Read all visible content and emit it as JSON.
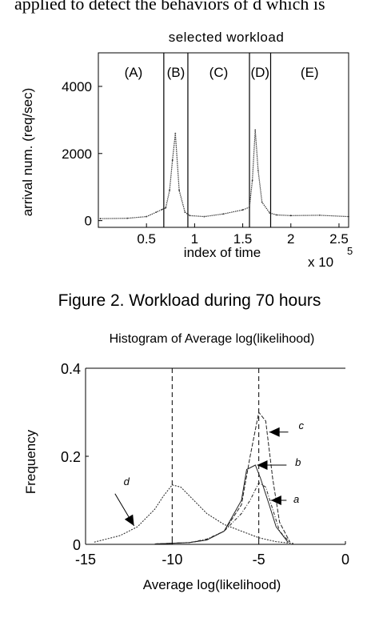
{
  "body_text_top": "applied to detect the behaviors of d which is",
  "figure_caption": "Figure 2. Workload during 70 hours",
  "chart_data": [
    {
      "type": "line",
      "title": "selected workload",
      "xlabel": "index of time",
      "x_multiplier": "x 10",
      "x_exponent": "5",
      "ylabel": "arrival num. (req/sec)",
      "xlim": [
        0,
        2.6
      ],
      "ylim": [
        -200,
        5000
      ],
      "x_ticks": [
        0.5,
        1,
        1.5,
        2,
        2.5
      ],
      "x_tick_labels": [
        "0.5",
        "1",
        "1.5",
        "2",
        "2.5"
      ],
      "y_ticks": [
        0,
        2000,
        4000
      ],
      "y_tick_labels": [
        "0",
        "2000",
        "4000"
      ],
      "grid": false,
      "regions": [
        "(A)",
        "(B)",
        "(C)",
        "(D)",
        "(E)"
      ],
      "region_boundaries": [
        0.68,
        0.93,
        1.57,
        1.79
      ],
      "series": [
        {
          "x": [
            0.02,
            0.3,
            0.5,
            0.6,
            0.66,
            0.7,
            0.74,
            0.77,
            0.8,
            0.84,
            0.9,
            0.95,
            1.1,
            1.3,
            1.5,
            1.57,
            1.6,
            1.63,
            1.66,
            1.7,
            1.78,
            1.85,
            2.0,
            2.3,
            2.6
          ],
          "y": [
            60,
            70,
            120,
            250,
            330,
            380,
            900,
            1800,
            2600,
            900,
            250,
            150,
            120,
            200,
            320,
            400,
            1200,
            2700,
            1500,
            550,
            230,
            170,
            150,
            160,
            120
          ]
        }
      ]
    },
    {
      "type": "line",
      "title": "Histogram of Average log(likelihood)",
      "xlabel": "Average log(likelihood)",
      "ylabel": "Frequency",
      "xlim": [
        -15,
        0
      ],
      "ylim": [
        0,
        0.4
      ],
      "x_ticks": [
        -15,
        -10,
        -5,
        0
      ],
      "x_tick_labels": [
        "-15",
        "-10",
        "-5",
        "0"
      ],
      "y_ticks": [
        0,
        0.2,
        0.4
      ],
      "y_tick_labels": [
        "0",
        "0.2",
        "0.4"
      ],
      "grid": false,
      "vlines": [
        -10,
        -5
      ],
      "series": [
        {
          "name": "d",
          "x": [
            -14.5,
            -13,
            -12,
            -11,
            -10.5,
            -10,
            -9.5,
            -9,
            -8,
            -7,
            -6,
            -5,
            -4,
            -3
          ],
          "y": [
            0.005,
            0.02,
            0.04,
            0.08,
            0.11,
            0.135,
            0.13,
            0.11,
            0.07,
            0.045,
            0.03,
            0.015,
            0.006,
            0.002
          ]
        },
        {
          "name": "c",
          "x": [
            -11,
            -9,
            -8,
            -7,
            -6,
            -5.5,
            -5,
            -4.6,
            -4.2,
            -3.8,
            -3.2
          ],
          "y": [
            0.001,
            0.004,
            0.01,
            0.03,
            0.09,
            0.2,
            0.3,
            0.28,
            0.15,
            0.05,
            0.005
          ]
        },
        {
          "name": "b",
          "x": [
            -11,
            -9,
            -8,
            -7,
            -6,
            -5.7,
            -5.2,
            -4.9,
            -4.4,
            -4,
            -3.3
          ],
          "y": [
            0.001,
            0.004,
            0.01,
            0.03,
            0.1,
            0.17,
            0.18,
            0.15,
            0.09,
            0.04,
            0.004
          ]
        },
        {
          "name": "a",
          "x": [
            -11,
            -9,
            -8,
            -7,
            -6,
            -5.5,
            -5,
            -4.6,
            -4.2,
            -3.8,
            -3.2
          ],
          "y": [
            0.001,
            0.004,
            0.012,
            0.03,
            0.07,
            0.1,
            0.14,
            0.13,
            0.08,
            0.03,
            0.004
          ]
        }
      ],
      "annotations": [
        "d",
        "c",
        "b",
        "a"
      ]
    }
  ]
}
